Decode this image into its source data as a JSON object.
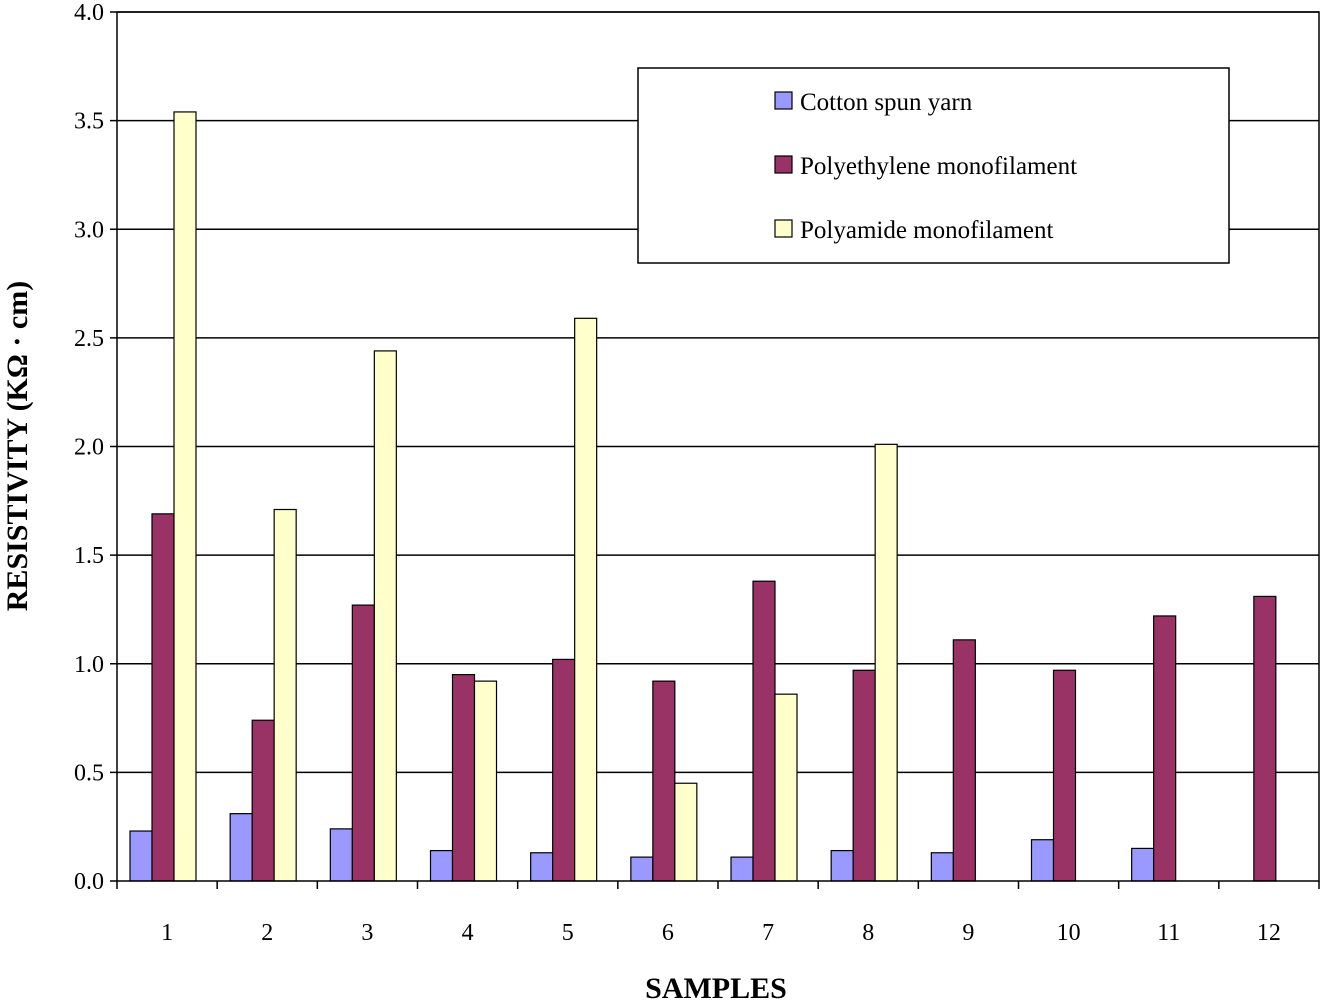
{
  "chart_data": {
    "type": "bar",
    "title": "",
    "xlabel": "SAMPLES",
    "ylabel": "RESISTIVITY (KΩ · cm)",
    "ylim": [
      0,
      4.0
    ],
    "ytick_step": 0.5,
    "ytick_labels": [
      "0.0",
      "0.5",
      "1.0",
      "1.5",
      "2.0",
      "2.5",
      "3.0",
      "3.5",
      "4.0"
    ],
    "grid": true,
    "legend_position": "top-right",
    "categories": [
      "1",
      "2",
      "3",
      "4",
      "5",
      "6",
      "7",
      "8",
      "9",
      "10",
      "11",
      "12"
    ],
    "series": [
      {
        "name": "Cotton spun yarn",
        "color": "#9999FF",
        "values": [
          0.23,
          0.31,
          0.24,
          0.14,
          0.13,
          0.11,
          0.11,
          0.14,
          0.13,
          0.19,
          0.15,
          null
        ]
      },
      {
        "name": "Polyethylene monofilament",
        "color": "#993366",
        "values": [
          1.69,
          0.74,
          1.27,
          0.95,
          1.02,
          0.92,
          1.38,
          0.97,
          1.11,
          0.97,
          1.22,
          1.31
        ]
      },
      {
        "name": "Polyamide monofilament",
        "color": "#FFFFCC",
        "values": [
          3.54,
          1.71,
          2.44,
          0.92,
          2.59,
          0.45,
          0.86,
          2.01,
          null,
          null,
          null,
          null
        ]
      }
    ]
  }
}
